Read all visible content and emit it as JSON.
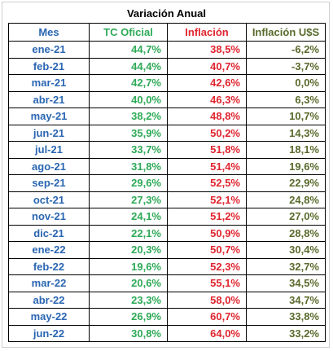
{
  "title": "Variación Anual",
  "colors": {
    "mes": "#2a66b2",
    "tc_oficial": "#2eaa57",
    "inflacion": "#e0252f",
    "inflacion_usd": "#5a6a2c"
  },
  "headers": {
    "mes": "Mes",
    "tc_oficial": "TC Oficial",
    "inflacion": "Inflación",
    "inflacion_usd": "Inflación U$S"
  },
  "rows": [
    {
      "mes": "ene-21",
      "tc_oficial": "44,7%",
      "inflacion": "38,5%",
      "inflacion_usd": "-6,2%"
    },
    {
      "mes": "feb-21",
      "tc_oficial": "44,4%",
      "inflacion": "40,7%",
      "inflacion_usd": "-3,7%"
    },
    {
      "mes": "mar-21",
      "tc_oficial": "42,7%",
      "inflacion": "42,6%",
      "inflacion_usd": "0,0%"
    },
    {
      "mes": "abr-21",
      "tc_oficial": "40,0%",
      "inflacion": "46,3%",
      "inflacion_usd": "6,3%"
    },
    {
      "mes": "may-21",
      "tc_oficial": "38,2%",
      "inflacion": "48,8%",
      "inflacion_usd": "10,7%"
    },
    {
      "mes": "jun-21",
      "tc_oficial": "35,9%",
      "inflacion": "50,2%",
      "inflacion_usd": "14,3%"
    },
    {
      "mes": "jul-21",
      "tc_oficial": "33,7%",
      "inflacion": "51,8%",
      "inflacion_usd": "18,1%"
    },
    {
      "mes": "ago-21",
      "tc_oficial": "31,8%",
      "inflacion": "51,4%",
      "inflacion_usd": "19,6%"
    },
    {
      "mes": "sep-21",
      "tc_oficial": "29,6%",
      "inflacion": "52,5%",
      "inflacion_usd": "22,9%"
    },
    {
      "mes": "oct-21",
      "tc_oficial": "27,3%",
      "inflacion": "52,1%",
      "inflacion_usd": "24,8%"
    },
    {
      "mes": "nov-21",
      "tc_oficial": "24,1%",
      "inflacion": "51,2%",
      "inflacion_usd": "27,0%"
    },
    {
      "mes": "dic-21",
      "tc_oficial": "22,1%",
      "inflacion": "50,9%",
      "inflacion_usd": "28,8%"
    },
    {
      "mes": "ene-22",
      "tc_oficial": "20,3%",
      "inflacion": "50,7%",
      "inflacion_usd": "30,4%"
    },
    {
      "mes": "feb-22",
      "tc_oficial": "19,6%",
      "inflacion": "52,3%",
      "inflacion_usd": "32,7%"
    },
    {
      "mes": "mar-22",
      "tc_oficial": "20,6%",
      "inflacion": "55,1%",
      "inflacion_usd": "34,5%"
    },
    {
      "mes": "abr-22",
      "tc_oficial": "23,3%",
      "inflacion": "58,0%",
      "inflacion_usd": "34,7%"
    },
    {
      "mes": "may-22",
      "tc_oficial": "26,9%",
      "inflacion": "60,7%",
      "inflacion_usd": "33,8%"
    },
    {
      "mes": "jun-22",
      "tc_oficial": "30,8%",
      "inflacion": "64,0%",
      "inflacion_usd": "33,2%"
    }
  ]
}
